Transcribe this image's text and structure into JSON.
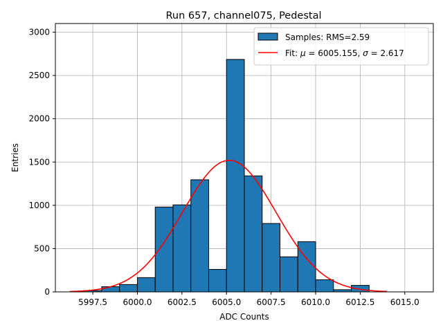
{
  "chart_data": {
    "type": "bar",
    "title": "Run 657, channel075, Pedestal",
    "xlabel": "ADC Counts",
    "ylabel": "Entries",
    "xlim": [
      5995.4,
      6016.6
    ],
    "ylim": [
      0,
      3100
    ],
    "grid": true,
    "legend_position": "top-right",
    "x_ticks": [
      5997.5,
      6000.0,
      6002.5,
      6005.0,
      6007.5,
      6010.0,
      6012.5,
      6015.0
    ],
    "x_tick_labels": [
      "5997.5",
      "6000.0",
      "6002.5",
      "6005.0",
      "6007.5",
      "6010.0",
      "6012.5",
      "6015.0"
    ],
    "y_ticks": [
      0,
      500,
      1000,
      1500,
      2000,
      2500,
      3000
    ],
    "y_tick_labels": [
      "0",
      "500",
      "1000",
      "1500",
      "2000",
      "2500",
      "3000"
    ],
    "bar_color": "#1f77b4",
    "bar_edge_color": "#000000",
    "bin_width": 1,
    "bins": [
      {
        "x0": 5997,
        "value": 15
      },
      {
        "x0": 5998,
        "value": 60
      },
      {
        "x0": 5999,
        "value": 85
      },
      {
        "x0": 6000,
        "value": 165
      },
      {
        "x0": 6001,
        "value": 980
      },
      {
        "x0": 6002,
        "value": 1005
      },
      {
        "x0": 6003,
        "value": 1295
      },
      {
        "x0": 6004,
        "value": 260
      },
      {
        "x0": 6005,
        "value": 2685
      },
      {
        "x0": 6006,
        "value": 1340
      },
      {
        "x0": 6007,
        "value": 790
      },
      {
        "x0": 6008,
        "value": 405
      },
      {
        "x0": 6009,
        "value": 580
      },
      {
        "x0": 6010,
        "value": 140
      },
      {
        "x0": 6011,
        "value": 25
      },
      {
        "x0": 6012,
        "value": 75
      }
    ],
    "fit": {
      "color": "#ff0000",
      "mu": 6005.155,
      "sigma": 2.617,
      "amplitude": 1520,
      "x_range": [
        5996.2,
        6014.0
      ]
    },
    "legend": [
      {
        "label": "Samples: RMS=2.59",
        "kind": "patch"
      },
      {
        "label_prefix": "Fit: ",
        "mu_symbol": "μ",
        "mu_text": " = 6005.155, ",
        "sigma_symbol": "σ",
        "sigma_text": " = 2.617",
        "kind": "line"
      }
    ]
  }
}
